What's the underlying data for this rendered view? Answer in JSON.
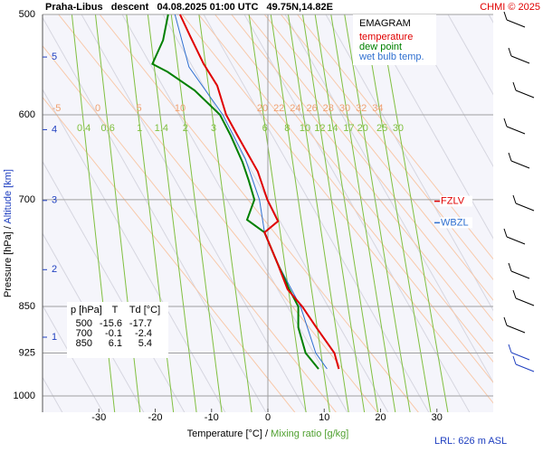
{
  "chart_data": {
    "type": "line",
    "title": "Praha-Libus   descent   04.08.2025 01:00 UTC   49.75N,14.82E",
    "credit": "CHMI © 2025",
    "legend_title": "EMAGRAM",
    "x_label": "Temperature [°C]",
    "x2_label": "Mixing ratio [g/kg]",
    "y_label": "Pressure [hPa]",
    "y2_label": "Altitude [km]",
    "label_separator": "/",
    "footer": "LRL: 626 m ASL",
    "xlim": [
      -40,
      40
    ],
    "ylim": [
      1000,
      500
    ],
    "log_y": true,
    "xticks": [
      -30,
      -20,
      -10,
      0,
      10,
      20,
      30
    ],
    "yticks": [
      500,
      600,
      700,
      850,
      925,
      1000
    ],
    "altitude_ticks": [
      1,
      2,
      3,
      4,
      5
    ],
    "series": [
      {
        "name": "temperature",
        "color": "#e00000",
        "pressure": [
          500,
          520,
          547,
          569,
          600,
          623,
          665,
          700,
          728,
          743,
          784,
          824,
          850,
          883,
          925,
          952
        ],
        "values": [
          -15.6,
          -13.8,
          -11.4,
          -9,
          -7.4,
          -5.4,
          -1.8,
          -0.1,
          1.8,
          -0.6,
          1.6,
          3.5,
          6.1,
          8.6,
          11.8,
          12.6
        ]
      },
      {
        "name": "dew point",
        "color": "#008000",
        "pressure": [
          500,
          524,
          547,
          555,
          574,
          600,
          623,
          654,
          676,
          700,
          726,
          743,
          784,
          824,
          850,
          883,
          925,
          952
        ],
        "values": [
          -17.7,
          -18.6,
          -20.5,
          -17.8,
          -13,
          -8.5,
          -6.6,
          -4.5,
          -3.4,
          -2.4,
          -3.7,
          -0.6,
          1.6,
          3.8,
          5.4,
          5.4,
          6.7,
          9
        ]
      },
      {
        "name": "wet bulb temp.",
        "color": "#3070d0",
        "pressure": [
          500,
          550,
          600,
          650,
          700,
          743,
          784,
          850,
          925,
          952
        ],
        "values": [
          -16.5,
          -14,
          -8,
          -4,
          -1.5,
          -0.6,
          1.6,
          5.8,
          8.5,
          10.5
        ]
      }
    ],
    "mixing_ratio": {
      "color": "#80c040",
      "values": [
        0.4,
        0.6,
        1,
        1.4,
        2,
        3,
        6,
        8,
        10,
        12,
        14,
        17,
        20,
        25,
        30
      ]
    },
    "adiabats": {
      "color": "#f0a070",
      "values": [
        -5,
        0,
        5,
        10,
        20,
        22,
        24,
        26,
        28,
        30,
        32,
        34
      ]
    },
    "levels": [
      {
        "label": "FZLV",
        "color": "#e00000",
        "pressure": 702
      },
      {
        "label": "WBZL",
        "color": "#3070d0",
        "pressure": 730
      }
    ],
    "table": {
      "headers": [
        "p [hPa]",
        "T",
        "Td [°C]"
      ],
      "rows": [
        [
          500,
          -15.6,
          -17.7
        ],
        [
          700,
          -0.1,
          -2.4
        ],
        [
          850,
          6.1,
          5.4
        ]
      ]
    }
  }
}
